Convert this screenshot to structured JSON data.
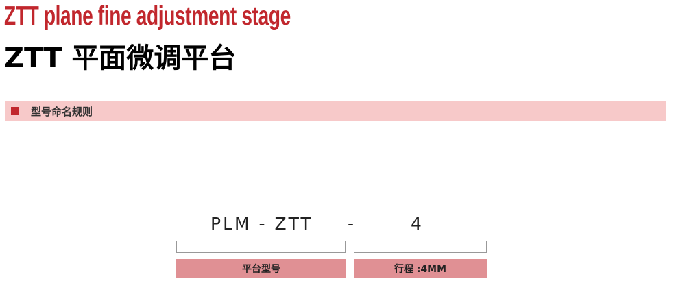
{
  "header": {
    "title_en": "ZTT plane fine adjustment stage",
    "title_cn": "ZTT 平面微调平台"
  },
  "section": {
    "title": "型号命名规则"
  },
  "model_code": {
    "part1": "PLM - ZTT",
    "separator": "-",
    "part2": "4"
  },
  "fields": [
    {
      "label": "平台型号"
    },
    {
      "label": "行程 :4MM"
    }
  ],
  "colors": {
    "accent": "#c1272d",
    "band": "#f7c9c9",
    "label_bg": "#e09094"
  }
}
